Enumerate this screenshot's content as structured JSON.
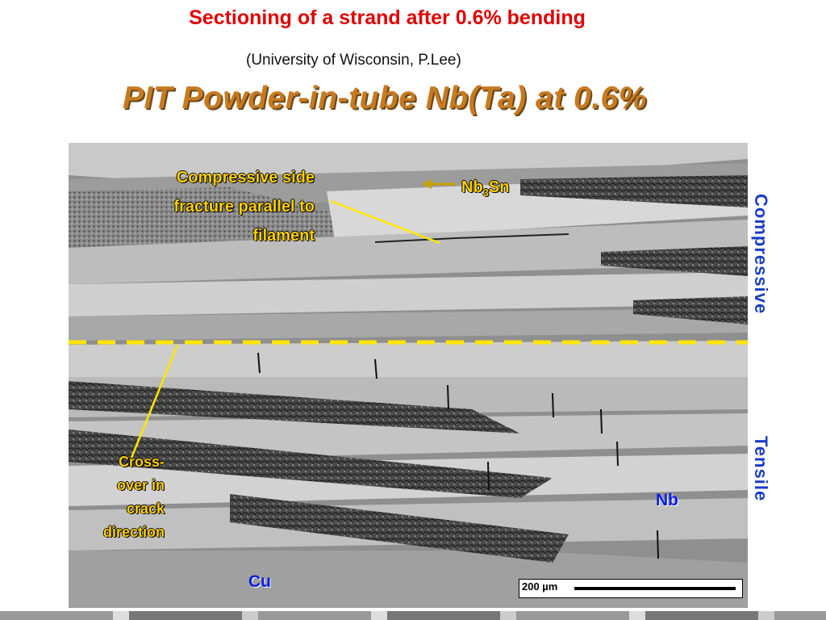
{
  "header": {
    "title": "Sectioning of a strand after 0.6% bending",
    "credit": "(University of Wisconsin, P.Lee)",
    "subtitle": "PIT Powder-in-tube Nb(Ta) at 0.6%"
  },
  "annotations": {
    "compressive_note_lines": [
      "Compressive side",
      "fracture parallel to",
      "filament"
    ],
    "crossover_note_lines": [
      "Cross-",
      "over in",
      "crack",
      "direction"
    ],
    "nb3sn_base": "Nb",
    "nb3sn_sub": "3",
    "nb3sn_tail": "Sn",
    "nb": "Nb",
    "cu": "Cu",
    "compressive_side": "Compressive",
    "tensile_side": "Tensile",
    "scale": "200 µm"
  },
  "colors": {
    "title_red": "#e00000",
    "subtitle_orange": "#c87a20",
    "annotation_yellow": "#ffd000",
    "label_blue": "#0a1ee0",
    "neutral_axis_yellow": "#ffe600"
  }
}
